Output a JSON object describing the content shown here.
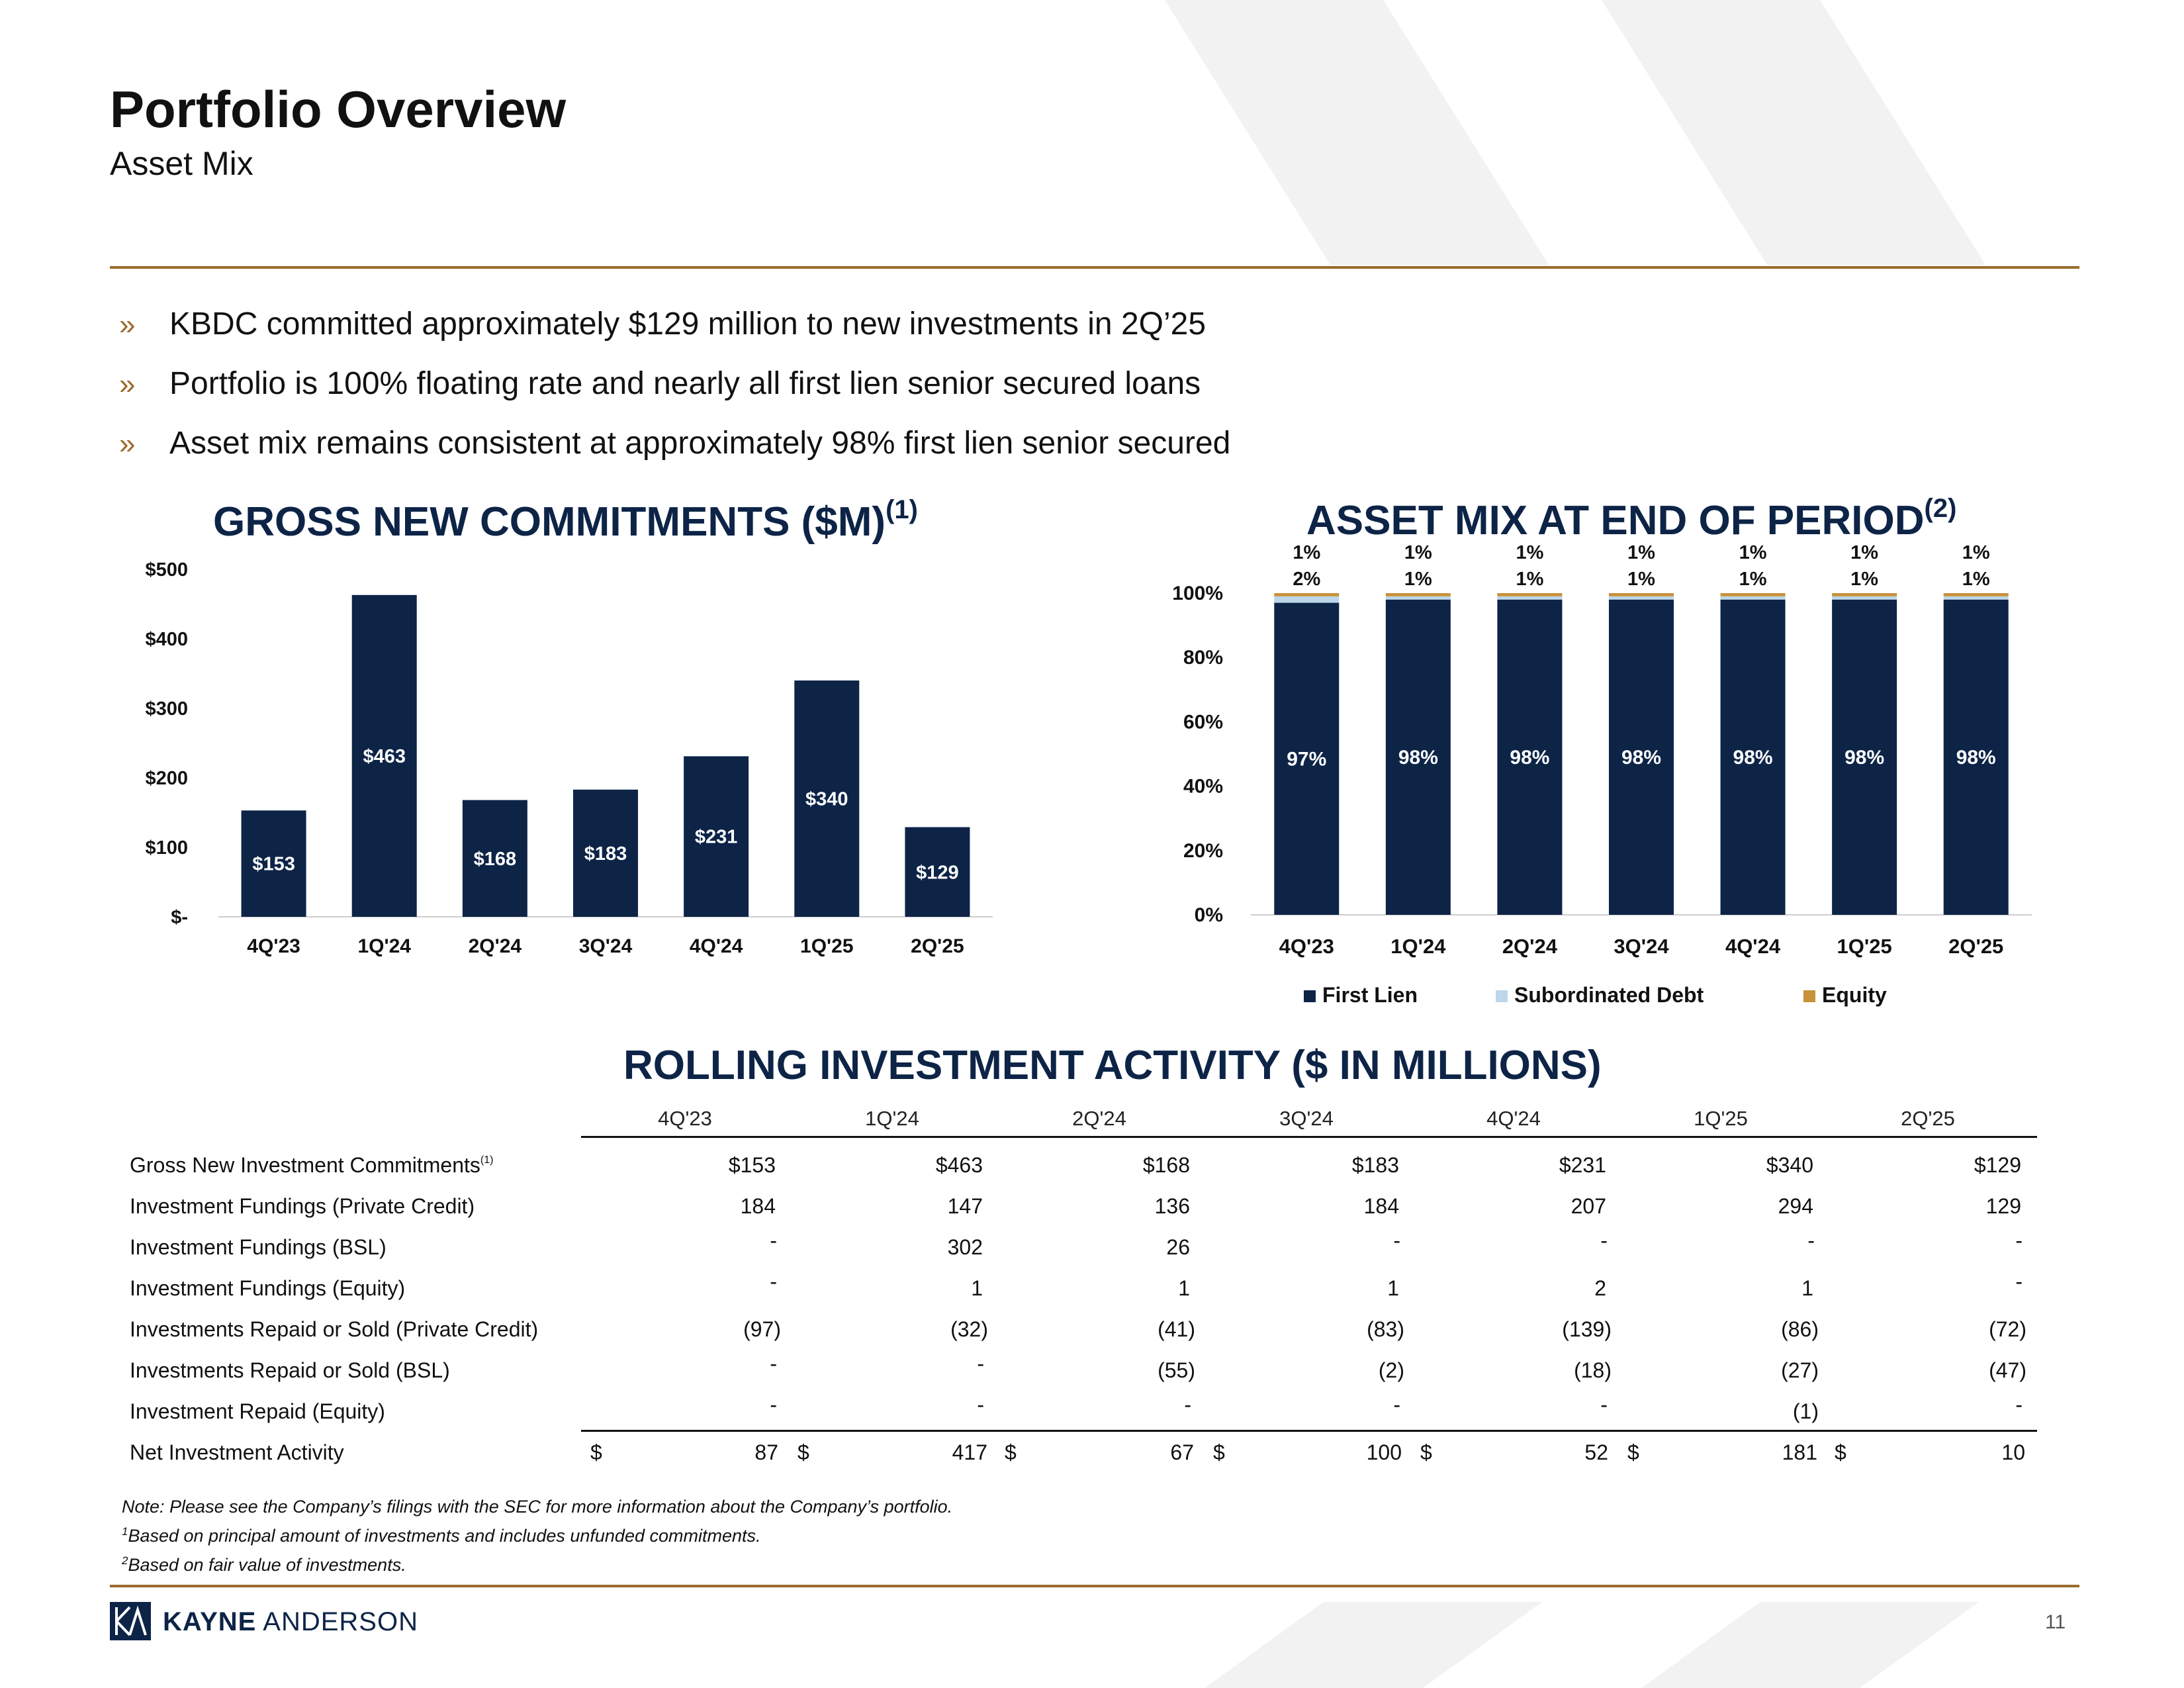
{
  "header": {
    "title": "Portfolio Overview",
    "subtitle": "Asset Mix"
  },
  "bullets": [
    "KBDC committed approximately $129 million to new investments in 2Q’25",
    "Portfolio is 100% floating rate and nearly all first lien senior secured loans",
    "Asset mix remains consistent at approximately 98% first lien senior secured"
  ],
  "bullet_mark": "»",
  "colors": {
    "navy": "#0d2447",
    "gold": "#9b6b2c",
    "equity": "#c8923a",
    "subordinated": "#bcd6ea",
    "chevron": "#f2f2f2"
  },
  "chart_data": [
    {
      "type": "bar",
      "title": "GROSS NEW COMMITMENTS ($M)",
      "title_sup": "(1)",
      "categories": [
        "4Q'23",
        "1Q'24",
        "2Q'24",
        "3Q'24",
        "4Q'24",
        "1Q'25",
        "2Q'25"
      ],
      "values": [
        153,
        463,
        168,
        183,
        231,
        340,
        129
      ],
      "data_labels": [
        "$153",
        "$463",
        "$168",
        "$183",
        "$231",
        "$340",
        "$129"
      ],
      "ylim": [
        0,
        500
      ],
      "yticks": [
        0,
        100,
        200,
        300,
        400,
        500
      ],
      "ytick_labels": [
        "$-",
        "$100",
        "$200",
        "$300",
        "$400",
        "$500"
      ],
      "xlabel": "",
      "ylabel": ""
    },
    {
      "type": "bar",
      "stacked": true,
      "title": "ASSET MIX AT END OF PERIOD",
      "title_sup": "(2)",
      "categories": [
        "4Q'23",
        "1Q'24",
        "2Q'24",
        "3Q'24",
        "4Q'24",
        "1Q'25",
        "2Q'25"
      ],
      "series": [
        {
          "name": "First Lien",
          "values": [
            97,
            98,
            98,
            98,
            98,
            98,
            98
          ],
          "labels": [
            "97%",
            "98%",
            "98%",
            "98%",
            "98%",
            "98%",
            "98%"
          ]
        },
        {
          "name": "Subordinated Debt",
          "values": [
            2,
            1,
            1,
            1,
            1,
            1,
            1
          ],
          "labels": [
            "2%",
            "1%",
            "1%",
            "1%",
            "1%",
            "1%",
            "1%"
          ]
        },
        {
          "name": "Equity",
          "values": [
            1,
            1,
            1,
            1,
            1,
            1,
            1
          ],
          "labels": [
            "1%",
            "1%",
            "1%",
            "1%",
            "1%",
            "1%",
            "1%"
          ]
        }
      ],
      "ylim": [
        0,
        100
      ],
      "yticks": [
        0,
        20,
        40,
        60,
        80,
        100
      ],
      "ytick_labels": [
        "0%",
        "20%",
        "40%",
        "60%",
        "80%",
        "100%"
      ],
      "legend": "bottom"
    }
  ],
  "table": {
    "title": "ROLLING INVESTMENT ACTIVITY ($ IN MILLIONS)",
    "columns": [
      "4Q'23",
      "1Q'24",
      "2Q'24",
      "3Q'24",
      "4Q'24",
      "1Q'25",
      "2Q'25"
    ],
    "rows": [
      {
        "label": "Gross New Investment Commitments",
        "sup": "(1)",
        "values": [
          "$153",
          "$463",
          "$168",
          "$183",
          "$231",
          "$340",
          "$129"
        ]
      },
      {
        "label": "Investment Fundings (Private Credit)",
        "values": [
          "184",
          "147",
          "136",
          "184",
          "207",
          "294",
          "129"
        ]
      },
      {
        "label": "Investment Fundings (BSL)",
        "values": [
          "-",
          "302",
          "26",
          "-",
          "-",
          "-",
          "-"
        ]
      },
      {
        "label": "Investment Fundings (Equity)",
        "values": [
          "-",
          "1",
          "1",
          "1",
          "2",
          "1",
          "-"
        ]
      },
      {
        "label": "Investments Repaid or Sold (Private Credit)",
        "values": [
          "(97)",
          "(32)",
          "(41)",
          "(83)",
          "(139)",
          "(86)",
          "(72)"
        ]
      },
      {
        "label": "Investments Repaid or Sold (BSL)",
        "values": [
          "-",
          "-",
          "(55)",
          "(2)",
          "(18)",
          "(27)",
          "(47)"
        ]
      },
      {
        "label": "Investment Repaid (Equity)",
        "values": [
          "-",
          "-",
          "-",
          "-",
          "-",
          "(1)",
          "-"
        ]
      },
      {
        "label": "Net Investment Activity",
        "values": [
          "87",
          "417",
          "67",
          "100",
          "52",
          "181",
          "10"
        ],
        "currency": "$"
      }
    ]
  },
  "notes": {
    "line1": "Note:  Please see the Company’s filings with the SEC for more information about the Company’s portfolio.",
    "line2_sup": "1",
    "line2": "Based on principal amount of investments and includes unfunded commitments.",
    "line3_sup": "2",
    "line3": "Based on fair value of investments."
  },
  "footer": {
    "logo_bold": "KAYNE",
    "logo_rest": " ANDERSON",
    "page_number": "11"
  }
}
